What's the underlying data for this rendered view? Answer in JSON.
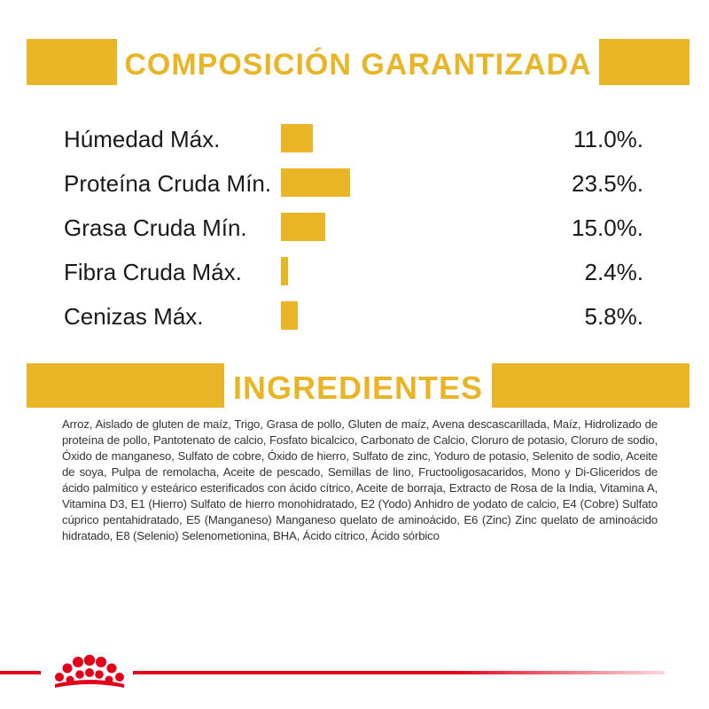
{
  "composition": {
    "title": "COMPOSICIÓN GARANTIZADA",
    "accent_color": "#e9b526",
    "rows": [
      {
        "label": "Húmedad Máx.",
        "value": "11.0%.",
        "amount": 11.0
      },
      {
        "label": "Proteína Cruda Mín.",
        "value": "23.5%.",
        "amount": 23.5
      },
      {
        "label": "Grasa Cruda Mín.",
        "value": "15.0%.",
        "amount": 15.0
      },
      {
        "label": "Fibra Cruda Máx.",
        "value": "2.4%.",
        "amount": 2.4
      },
      {
        "label": "Cenizas Máx.",
        "value": "5.8%.",
        "amount": 5.8
      }
    ]
  },
  "ingredients": {
    "title": "INGREDIENTES",
    "text": "Arroz, Aislado de gluten de maíz, Trigo, Grasa de pollo, Gluten de maíz, Avena descascarillada, Maíz, Hidrolizado de proteína de pollo, Pantotenato de calcio, Fosfato bicalcico, Carbonato de Calcio, Cloruro de potasio, Cloruro de sodio, Óxido de manganeso, Sulfato de cobre, Óxido de hierro, Sulfato de zinc, Yoduro de potasio, Selenito de sodio, Aceite de soya, Pulpa de remolacha, Aceite de pescado, Semillas de lino, Fructooligosacaridos, Mono y Di-Gliceridos de ácido palmítico y esteárico esterificados con ácido cítrico, Aceite de borraja, Extracto de Rosa de la India, Vitamina A, Vitamina D3, E1 (Hierro) Sulfato de hierro monohidratado, E2 (Yodo) Anhidro de yodato de calcio, E4 (Cobre) Sulfato cúprico pentahidratado, E5 (Manganeso) Manganeso quelato de aminoácido, E6 (Zinc) Zinc quelato de aminoácido hidratado, E8 (Selenio) Selenometionina, BHA, Ácido cítrico, Ácido sórbico"
  },
  "footer": {
    "logo_icon": "royal-canin-crown-icon",
    "brand_color": "#e2001a"
  }
}
